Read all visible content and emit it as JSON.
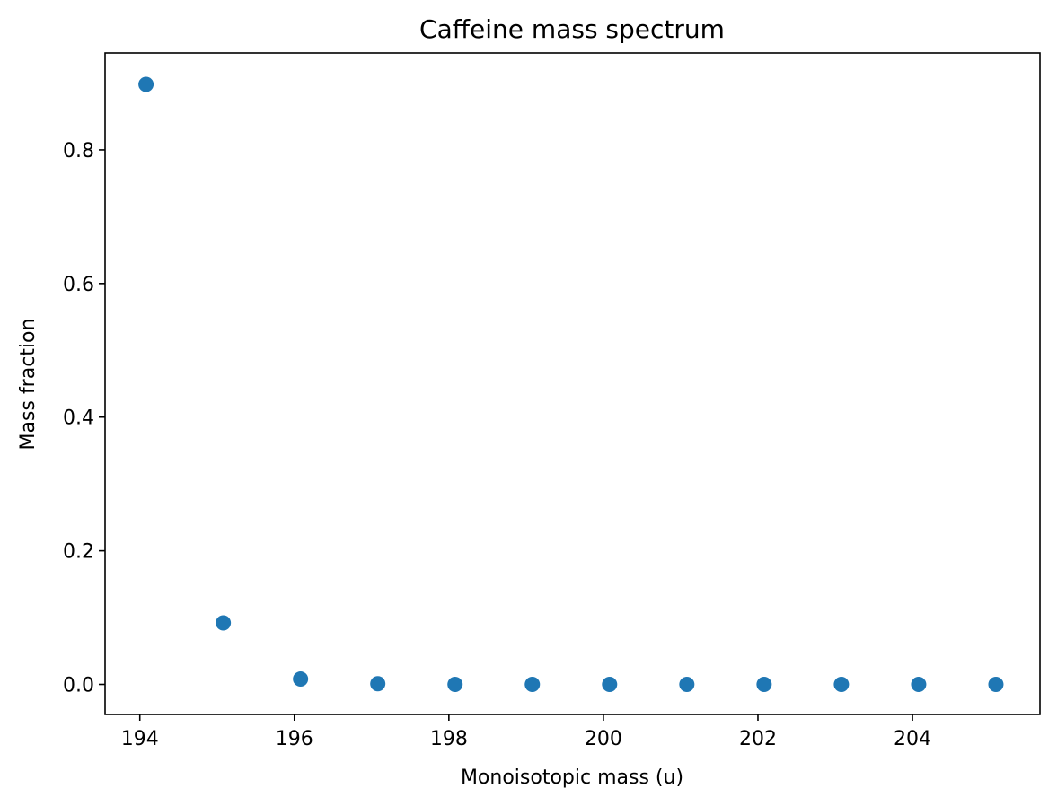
{
  "chart_data": {
    "type": "scatter",
    "title": "Caffeine mass spectrum",
    "xlabel": "Monoisotopic mass (u)",
    "ylabel": "Mass fraction",
    "xlim": [
      193.55,
      205.65
    ],
    "ylim": [
      -0.045,
      0.945
    ],
    "xticks": [
      194,
      196,
      198,
      200,
      202,
      204
    ],
    "xtick_labels": [
      "194",
      "196",
      "198",
      "200",
      "202",
      "204"
    ],
    "yticks": [
      0.0,
      0.2,
      0.4,
      0.6,
      0.8
    ],
    "ytick_labels": [
      "0.0",
      "0.2",
      "0.4",
      "0.6",
      "0.8"
    ],
    "grid": false,
    "marker_color": "#1f77b4",
    "x": [
      194.08,
      195.08,
      196.08,
      197.08,
      198.08,
      199.08,
      200.08,
      201.08,
      202.08,
      203.08,
      204.08,
      205.08
    ],
    "y": [
      0.898,
      0.092,
      0.008,
      0.001,
      0.0,
      0.0,
      0.0,
      0.0,
      0.0,
      0.0,
      0.0,
      0.0
    ]
  }
}
